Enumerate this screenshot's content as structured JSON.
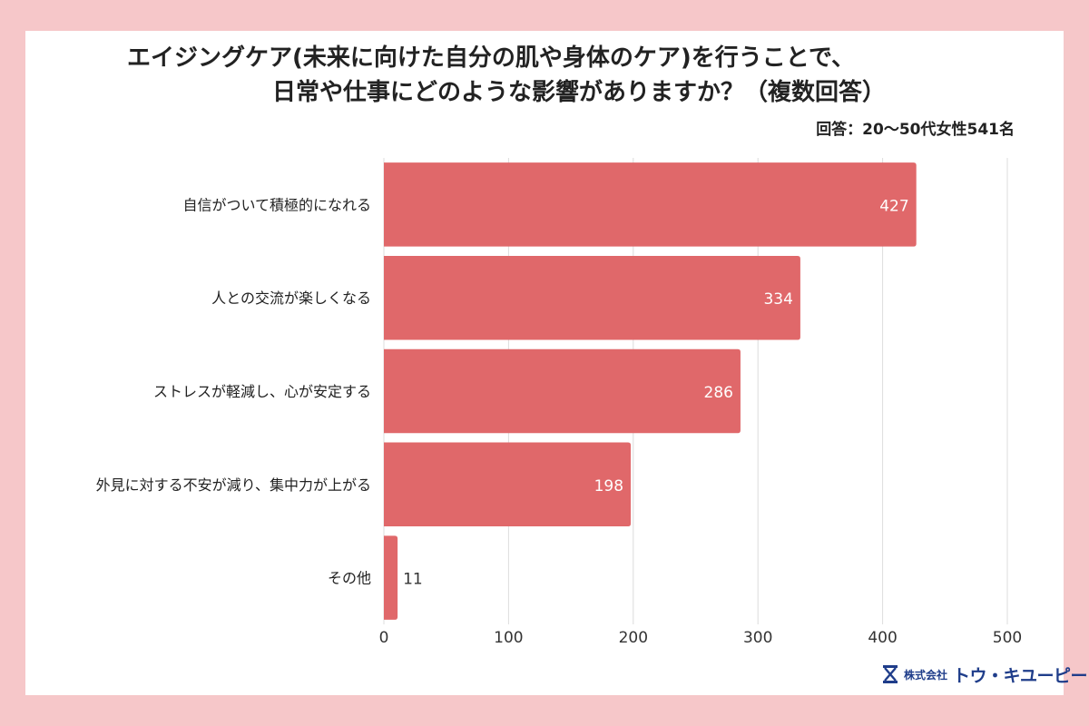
{
  "title_line1": "エイジングケア(未来に向けた自分の肌や身体のケア)を行うことで、",
  "title_line2": "日常や仕事にどのような影響がありますか？（複数回答）",
  "subtitle": "回答：20〜50代女性541名",
  "logo": {
    "prefix": "株式会社",
    "name": "トウ・キユーピー"
  },
  "colors": {
    "bar": "#e0686a",
    "background": "#f6c7c9",
    "grid": "#dcdcdc"
  },
  "chart_data": {
    "type": "bar",
    "orientation": "horizontal",
    "categories": [
      "自信がついて積極的になれる",
      "人との交流が楽しくなる",
      "ストレスが軽減し、心が安定する",
      "外見に対する不安が減り、集中力が上がる",
      "その他"
    ],
    "values": [
      427,
      334,
      286,
      198,
      11
    ],
    "xlim": [
      0,
      500
    ],
    "xticks": [
      0,
      100,
      200,
      300,
      400,
      500
    ],
    "grid": true
  }
}
